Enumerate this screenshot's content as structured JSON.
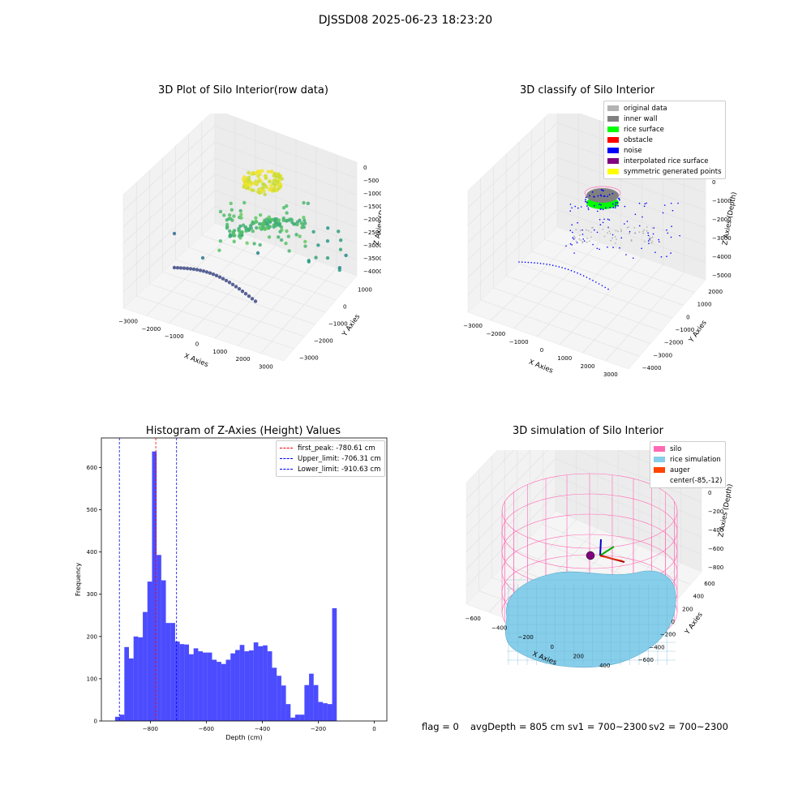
{
  "suptitle": "DJSSD08 2025-06-23 18:23:20",
  "status": {
    "flag": "flag = 0",
    "avg_depth": "avgDepth = 805 cm",
    "sv1": "sv1 = 700~2300",
    "sv2": "sv2 = 700~2300"
  },
  "chart_data": [
    {
      "type": "scatter",
      "projection": "3d",
      "title": "3D Plot of Silo Interior(row data)",
      "xlabel": "X Axies",
      "ylabel": "Y Axies",
      "zlabel": "Z Axies (Depth)",
      "x_ticks": [
        "−3000",
        "−2000",
        "−1000",
        "0",
        "1000",
        "2000",
        "3000"
      ],
      "y_ticks": [
        "−3000",
        "−2000",
        "−1000",
        "0",
        "1000"
      ],
      "z_ticks": [
        "0",
        "−500",
        "−1000",
        "−1500",
        "−2000",
        "−2500",
        "−3000",
        "−3500",
        "−4000"
      ],
      "colormap": "viridis"
    },
    {
      "type": "scatter",
      "projection": "3d",
      "title": "3D classify of Silo Interior",
      "xlabel": "X Axies",
      "ylabel": "Y Axies",
      "zlabel": "Z Axies (Depth)",
      "x_ticks": [
        "−3000",
        "−2000",
        "−1000",
        "0",
        "1000",
        "2000",
        "3000"
      ],
      "y_ticks": [
        "−4000",
        "−3000",
        "−2000",
        "−1000",
        "0",
        "1000",
        "2000"
      ],
      "z_ticks": [
        "000",
        "0",
        "−1000",
        "−2000",
        "−3000",
        "−4000",
        "−5000"
      ],
      "legend": [
        {
          "label": "original data",
          "color": "#b3b3b3"
        },
        {
          "label": "inner wall",
          "color": "#808080"
        },
        {
          "label": "rice surface",
          "color": "#00ff00"
        },
        {
          "label": "obstacle",
          "color": "#ff0000"
        },
        {
          "label": "noise",
          "color": "#0000ff"
        },
        {
          "label": "interpolated rice surface",
          "color": "#800080"
        },
        {
          "label": "symmetric generated points",
          "color": "#ffff00"
        }
      ],
      "legend_position": "top-right"
    },
    {
      "type": "bar",
      "title": "Histogram of Z-Axies (Height) Values",
      "xlabel": "Depth (cm)",
      "ylabel": "Frequency",
      "xlim": [
        -975,
        45
      ],
      "ylim": [
        0,
        670
      ],
      "bin_width": 16.5,
      "bin_start": -926,
      "values": [
        10,
        15,
        175,
        148,
        200,
        198,
        258,
        330,
        638,
        393,
        333,
        232,
        232,
        188,
        182,
        181,
        158,
        172,
        165,
        162,
        162,
        145,
        140,
        135,
        145,
        160,
        168,
        180,
        165,
        167,
        186,
        177,
        179,
        165,
        126,
        107,
        84,
        40,
        8,
        15,
        15,
        85,
        112,
        85,
        45,
        42,
        40,
        267
      ],
      "color": "#0000ff",
      "x_ticks": [
        -800,
        -600,
        -400,
        -200,
        0
      ],
      "x_tick_labels": [
        "−800",
        "−600",
        "−400",
        "−200",
        "0"
      ],
      "y_ticks": [
        0,
        100,
        200,
        300,
        400,
        500,
        600
      ],
      "vlines": [
        {
          "label": "first_peak: -780.61 cm",
          "x": -780.61,
          "color": "#ff0000"
        },
        {
          "label": "Upper_limit: -706.31 cm",
          "x": -706.31,
          "color": "#0000ff"
        },
        {
          "label": "Lower_limit: -910.63 cm",
          "x": -910.63,
          "color": "#0000ff"
        }
      ],
      "legend_position": "top-right"
    },
    {
      "type": "surface",
      "projection": "3d",
      "title": "3D simulation of Silo Interior",
      "xlabel": "X Axies",
      "ylabel": "Y Axies",
      "zlabel": "Z Axies (Depth)",
      "x_ticks": [
        "−600",
        "−400",
        "−200",
        "0",
        "200",
        "400"
      ],
      "y_ticks": [
        "−600",
        "−400",
        "−200",
        "0",
        "200",
        "400",
        "600"
      ],
      "z_ticks": [
        "400",
        "200",
        "0",
        "−200",
        "−400",
        "−600",
        "−800"
      ],
      "legend": [
        {
          "label": "silo",
          "color": "#ff69b4"
        },
        {
          "label": "rice simulation",
          "color": "#87ceeb"
        },
        {
          "label": "auger",
          "color": "#ff4500"
        },
        {
          "label": "center(-85,-12)",
          "color": ""
        }
      ],
      "legend_position": "top-right"
    }
  ]
}
